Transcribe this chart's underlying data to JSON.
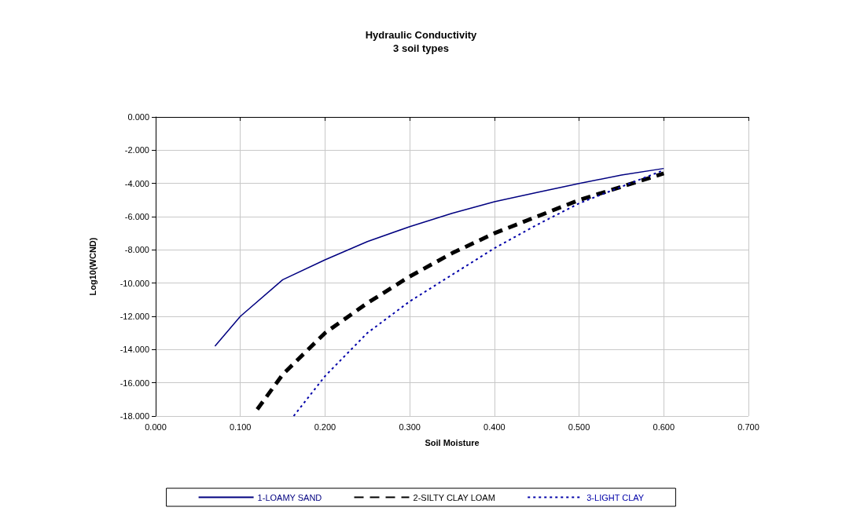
{
  "chart_data": {
    "type": "line",
    "title": "Hydraulic Conductivity",
    "subtitle": "3 soil types",
    "xlabel": "Soil Moisture",
    "ylabel": "Log10(WCND)",
    "xlim": [
      0,
      0.7
    ],
    "xticks": [
      {
        "value": 0,
        "label": "0.000"
      },
      {
        "value": 0.1,
        "label": "0.100"
      },
      {
        "value": 0.2,
        "label": "0.200"
      },
      {
        "value": 0.3,
        "label": "0.300"
      },
      {
        "value": 0.4,
        "label": "0.400"
      },
      {
        "value": 0.5,
        "label": "0.500"
      },
      {
        "value": 0.6,
        "label": "0.600"
      },
      {
        "value": 0.7,
        "label": "0.700"
      }
    ],
    "ylim": [
      -18,
      0
    ],
    "yticks": [
      {
        "value": -18,
        "label": "-18.000"
      },
      {
        "value": -16,
        "label": "-16.000"
      },
      {
        "value": -14,
        "label": "-14.000"
      },
      {
        "value": -12,
        "label": "-12.000"
      },
      {
        "value": -10,
        "label": "-10.000"
      },
      {
        "value": -8,
        "label": "-8.000"
      },
      {
        "value": -6,
        "label": "-6.000"
      },
      {
        "value": -4,
        "label": "-4.000"
      },
      {
        "value": -2,
        "label": "-2.000"
      },
      {
        "value": 0,
        "label": "0.000"
      }
    ],
    "grid": true,
    "legend": "bottom",
    "marker": "none",
    "series": [
      {
        "name": "1-LOAMY SAND",
        "color": "#000080",
        "line_style": "solid",
        "x": [
          0.07,
          0.1,
          0.15,
          0.2,
          0.25,
          0.3,
          0.35,
          0.4,
          0.45,
          0.5,
          0.55,
          0.6
        ],
        "values": [
          -13.8,
          -12.0,
          -9.8,
          -8.6,
          -7.5,
          -6.6,
          -5.8,
          -5.1,
          -4.55,
          -4.0,
          -3.5,
          -3.1
        ]
      },
      {
        "name": "2-SILTY CLAY LOAM",
        "color": "#000000",
        "line_style": "dashed",
        "x": [
          0.12,
          0.15,
          0.2,
          0.25,
          0.3,
          0.35,
          0.4,
          0.45,
          0.5,
          0.55,
          0.6
        ],
        "values": [
          -17.6,
          -15.5,
          -13.0,
          -11.2,
          -9.6,
          -8.2,
          -7.0,
          -6.0,
          -5.0,
          -4.2,
          -3.4
        ]
      },
      {
        "name": "3-LIGHT CLAY",
        "color": "#0000a8",
        "line_style": "dotted",
        "x": [
          0.163,
          0.2,
          0.25,
          0.3,
          0.35,
          0.4,
          0.45,
          0.5,
          0.55,
          0.6
        ],
        "values": [
          -18.0,
          -15.6,
          -13.0,
          -11.1,
          -9.5,
          -7.9,
          -6.5,
          -5.2,
          -4.2,
          -3.2
        ]
      }
    ]
  }
}
